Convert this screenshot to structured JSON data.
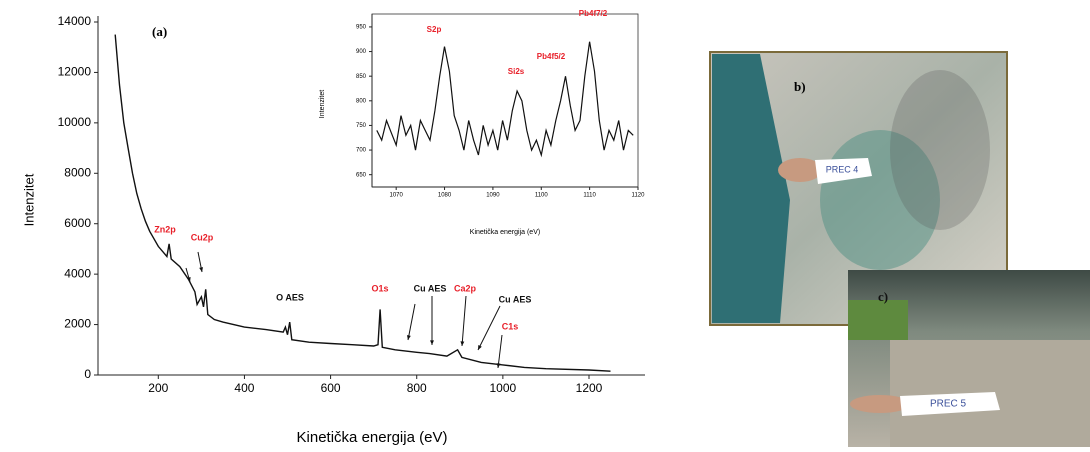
{
  "chart_data": [
    {
      "type": "line",
      "annotation": "(a)",
      "x_label": "Kinetička energija (eV)",
      "y_label": "Intenzitet",
      "x": [
        100,
        110,
        120,
        130,
        140,
        150,
        160,
        170,
        180,
        190,
        200,
        210,
        220,
        225,
        230,
        250,
        270,
        285,
        290,
        300,
        305,
        310,
        315,
        330,
        350,
        400,
        450,
        490,
        495,
        500,
        505,
        510,
        550,
        600,
        650,
        700,
        710,
        715,
        720,
        750,
        800,
        830,
        870,
        895,
        905,
        950,
        1000,
        1050,
        1100,
        1200,
        1250
      ],
      "series": [
        {
          "name": "Intenzitet",
          "color": "#111111",
          "values": [
            13500,
            11500,
            10000,
            9000,
            8000,
            7200,
            6600,
            6100,
            5700,
            5400,
            5100,
            4900,
            4700,
            5200,
            4600,
            4300,
            3800,
            3300,
            2800,
            3100,
            2700,
            3400,
            2400,
            2200,
            2100,
            1900,
            1800,
            1700,
            1900,
            1600,
            2100,
            1400,
            1300,
            1250,
            1200,
            1150,
            1200,
            2600,
            1100,
            1000,
            900,
            850,
            750,
            1000,
            700,
            500,
            400,
            300,
            250,
            200,
            150
          ]
        }
      ],
      "xlim": [
        60,
        1330
      ],
      "xticks": [
        200,
        400,
        600,
        800,
        1000,
        1200
      ],
      "ylim": [
        0,
        14000
      ],
      "yticks": [
        0,
        2000,
        4000,
        6000,
        8000,
        10000,
        12000,
        14000
      ],
      "peaks": [
        {
          "text": "Zn2p",
          "color": "#e8202a"
        },
        {
          "text": "Cu2p",
          "color": "#e8202a"
        },
        {
          "text": "O AES",
          "color": "#111111"
        },
        {
          "text": "O1s",
          "color": "#e8202a"
        },
        {
          "text": "Cu AES",
          "color": "#111111"
        },
        {
          "text": "Ca2p",
          "color": "#e8202a"
        },
        {
          "text": "Cu AES",
          "color": "#111111"
        },
        {
          "text": "C1s",
          "color": "#e8202a"
        }
      ]
    },
    {
      "type": "line",
      "x_label": "Kinetička energija (eV)",
      "y_label": "Intenzitet",
      "x": [
        1066,
        1067,
        1068,
        1069,
        1070,
        1071,
        1072,
        1073,
        1074,
        1075,
        1076,
        1077,
        1078,
        1079,
        1080,
        1081,
        1082,
        1083,
        1084,
        1085,
        1086,
        1087,
        1088,
        1089,
        1090,
        1091,
        1092,
        1093,
        1094,
        1095,
        1096,
        1097,
        1098,
        1099,
        1100,
        1101,
        1102,
        1103,
        1104,
        1105,
        1106,
        1107,
        1108,
        1109,
        1110,
        1111,
        1112,
        1113,
        1114,
        1115,
        1116,
        1117,
        1118,
        1119
      ],
      "series": [
        {
          "name": "Intenzitet",
          "color": "#111111",
          "values": [
            740,
            720,
            760,
            735,
            710,
            770,
            730,
            750,
            700,
            760,
            740,
            720,
            780,
            850,
            910,
            860,
            770,
            740,
            700,
            760,
            720,
            690,
            750,
            710,
            740,
            700,
            760,
            720,
            780,
            820,
            800,
            740,
            700,
            720,
            690,
            740,
            710,
            760,
            800,
            850,
            790,
            740,
            760,
            850,
            920,
            860,
            760,
            700,
            740,
            720,
            760,
            700,
            740,
            730
          ]
        }
      ],
      "xlim": [
        1065,
        1120
      ],
      "xticks": [
        1070,
        1080,
        1090,
        1100,
        1110,
        1120
      ],
      "ylim": [
        625,
        960
      ],
      "yticks": [
        650,
        700,
        750,
        800,
        850,
        900,
        950
      ],
      "peaks": [
        {
          "text": "S2p",
          "color": "#e8202a"
        },
        {
          "text": "Si2s",
          "color": "#e8202a"
        },
        {
          "text": "Pb4f5/2",
          "color": "#e8202a"
        },
        {
          "text": "Pb4f7/2",
          "color": "#e8202a"
        }
      ]
    }
  ],
  "photos": [
    {
      "label": "b)",
      "tag": "PREC 4"
    },
    {
      "label": "c)",
      "tag": "PREC 5"
    }
  ]
}
